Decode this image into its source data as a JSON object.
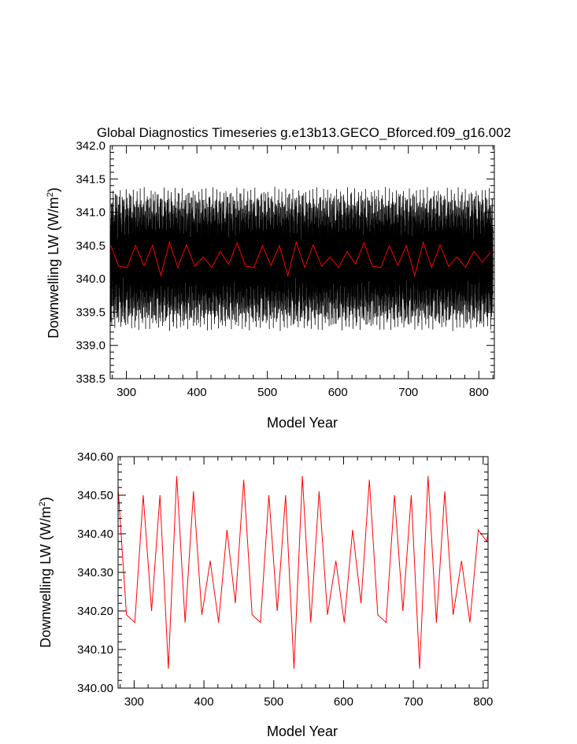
{
  "chart_data": [
    {
      "type": "line",
      "title": "Global Diagnostics Timeseries g.e13b13.GECO_Bforced.f09_g16.002",
      "xlabel": "Model Year",
      "ylabel": "Downwelling LW (W/m",
      "ylabel_sup": "2",
      "ylabel_end": ")",
      "xlim": [
        277,
        822
      ],
      "ylim": [
        338.5,
        342.0
      ],
      "xticks": [
        300,
        400,
        500,
        600,
        700,
        800
      ],
      "xtick_labels": [
        "300",
        "400",
        "500",
        "600",
        "700",
        "800"
      ],
      "yticks": [
        338.5,
        339.0,
        339.5,
        340.0,
        340.5,
        341.0,
        341.5,
        342.0
      ],
      "ytick_labels": [
        "338.5",
        "339.0",
        "339.5",
        "340.0",
        "340.5",
        "341.0",
        "341.5",
        "342.0"
      ],
      "grid": false,
      "series": [
        {
          "color": "#000000",
          "monthly": {
            "start": 277,
            "end": 820,
            "step": 0.0833,
            "mean": 340.3,
            "amplitude": 1.1
          }
        },
        {
          "color": "#ff0000",
          "x": [
            277,
            289,
            301,
            313,
            325,
            337,
            349,
            361,
            373,
            385,
            397,
            409,
            421,
            433,
            445,
            457,
            469,
            481,
            493,
            505,
            517,
            529,
            541,
            553,
            565,
            577,
            589,
            601,
            613,
            625,
            637,
            649,
            661,
            673,
            685,
            697,
            709,
            721,
            733,
            745,
            757,
            769,
            781,
            793,
            805,
            817
          ],
          "y": [
            340.52,
            340.19,
            340.17,
            340.5,
            340.2,
            340.5,
            340.05,
            340.55,
            340.17,
            340.51,
            340.19,
            340.33,
            340.17,
            340.41,
            340.22,
            340.54,
            340.19,
            340.17,
            340.5,
            340.2,
            340.5,
            340.05,
            340.55,
            340.17,
            340.51,
            340.19,
            340.33,
            340.17,
            340.41,
            340.22,
            340.54,
            340.19,
            340.17,
            340.5,
            340.2,
            340.5,
            340.05,
            340.55,
            340.17,
            340.51,
            340.19,
            340.33,
            340.17,
            340.41,
            340.25,
            340.4
          ]
        }
      ]
    },
    {
      "type": "line",
      "xlabel": "Model Year",
      "ylabel": "Downwelling LW (W/m",
      "ylabel_sup": "2",
      "ylabel_end": ")",
      "xlim": [
        277,
        807
      ],
      "ylim": [
        340.0,
        340.6
      ],
      "xticks": [
        300,
        400,
        500,
        600,
        700,
        800
      ],
      "xtick_labels": [
        "300",
        "400",
        "500",
        "600",
        "700",
        "800"
      ],
      "yticks": [
        340.0,
        340.1,
        340.2,
        340.3,
        340.4,
        340.5,
        340.6
      ],
      "ytick_labels": [
        "340.00",
        "340.10",
        "340.20",
        "340.30",
        "340.40",
        "340.50",
        "340.60"
      ],
      "grid": false,
      "series": [
        {
          "color": "#ff0000",
          "x": [
            277,
            289,
            301,
            313,
            325,
            337,
            349,
            361,
            373,
            385,
            397,
            409,
            421,
            433,
            445,
            457,
            469,
            481,
            493,
            505,
            517,
            529,
            541,
            553,
            565,
            577,
            589,
            601,
            613,
            625,
            637,
            649,
            661,
            673,
            685,
            697,
            709,
            721,
            733,
            745,
            757,
            769,
            781,
            793,
            805,
            807
          ],
          "y": [
            340.52,
            340.19,
            340.17,
            340.5,
            340.2,
            340.5,
            340.05,
            340.55,
            340.17,
            340.51,
            340.19,
            340.33,
            340.17,
            340.41,
            340.22,
            340.54,
            340.19,
            340.17,
            340.5,
            340.2,
            340.5,
            340.05,
            340.55,
            340.17,
            340.51,
            340.19,
            340.33,
            340.17,
            340.41,
            340.22,
            340.54,
            340.19,
            340.17,
            340.5,
            340.2,
            340.5,
            340.05,
            340.55,
            340.17,
            340.51,
            340.19,
            340.33,
            340.17,
            340.41,
            340.38,
            340.4
          ]
        }
      ]
    }
  ]
}
